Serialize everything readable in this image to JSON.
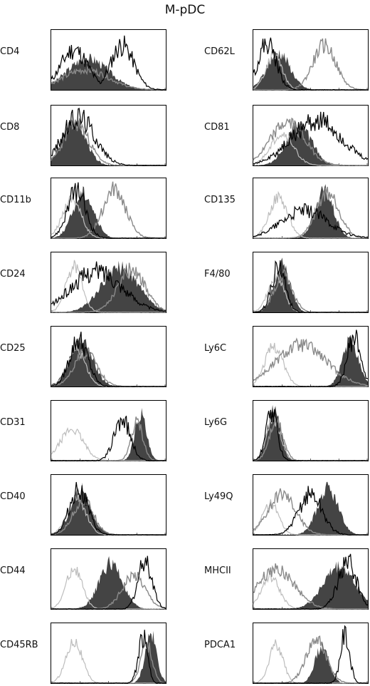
{
  "title": "M-pDC",
  "colors": {
    "filled": "#444444",
    "black": "#000000",
    "gray": "#8a8a8a",
    "light": "#bdbdbd"
  },
  "chart_data": {
    "type": "area",
    "grid": false,
    "panels": [
      {
        "label": "CD4",
        "filled": {
          "peak": 0.32,
          "width": 0.18,
          "height": 0.55
        },
        "black": {
          "peak": 0.62,
          "width": 0.1,
          "height": 0.78,
          "second": {
            "peak": 0.2,
            "width": 0.12,
            "height": 0.7
          }
        },
        "gray": {
          "peak": 0.3,
          "width": 0.2,
          "height": 0.35
        },
        "light": null
      },
      {
        "label": "CD8",
        "filled": {
          "peak": 0.2,
          "width": 0.1,
          "height": 0.78
        },
        "black": {
          "peak": 0.24,
          "width": 0.14,
          "height": 0.85
        },
        "gray": {
          "peak": 0.22,
          "width": 0.11,
          "height": 0.72
        },
        "light": null
      },
      {
        "label": "CD11b",
        "filled": {
          "peak": 0.28,
          "width": 0.09,
          "height": 0.8
        },
        "black": {
          "peak": 0.22,
          "width": 0.08,
          "height": 0.82
        },
        "gray": {
          "peak": 0.55,
          "width": 0.1,
          "height": 0.85
        },
        "light": {
          "peak": 0.18,
          "width": 0.08,
          "height": 0.7
        }
      },
      {
        "label": "CD24",
        "filled": {
          "peak": 0.6,
          "width": 0.16,
          "height": 0.78
        },
        "black": {
          "peak": 0.4,
          "width": 0.22,
          "height": 0.72
        },
        "gray": {
          "peak": 0.7,
          "width": 0.12,
          "height": 0.75
        },
        "light": {
          "peak": 0.2,
          "width": 0.07,
          "height": 0.8
        }
      },
      {
        "label": "CD25",
        "filled": {
          "peak": 0.26,
          "width": 0.1,
          "height": 0.8
        },
        "black": {
          "peak": 0.24,
          "width": 0.08,
          "height": 0.82
        },
        "gray": {
          "peak": 0.3,
          "width": 0.1,
          "height": 0.6
        },
        "light": {
          "peak": 0.22,
          "width": 0.08,
          "height": 0.65
        }
      },
      {
        "label": "CD31",
        "filled": {
          "peak": 0.78,
          "width": 0.05,
          "height": 0.82
        },
        "black": {
          "peak": 0.62,
          "width": 0.07,
          "height": 0.72
        },
        "gray": {
          "peak": 0.75,
          "width": 0.05,
          "height": 0.68
        },
        "light": {
          "peak": 0.18,
          "width": 0.1,
          "height": 0.55
        }
      },
      {
        "label": "CD40",
        "filled": {
          "peak": 0.26,
          "width": 0.09,
          "height": 0.78
        },
        "black": {
          "peak": 0.24,
          "width": 0.08,
          "height": 0.8
        },
        "gray": {
          "peak": 0.28,
          "width": 0.09,
          "height": 0.6
        },
        "light": {
          "peak": 0.22,
          "width": 0.08,
          "height": 0.65
        }
      },
      {
        "label": "CD44",
        "filled": {
          "peak": 0.52,
          "width": 0.1,
          "height": 0.8
        },
        "black": {
          "peak": 0.82,
          "width": 0.06,
          "height": 0.85
        },
        "gray": {
          "peak": 0.72,
          "width": 0.1,
          "height": 0.6
        },
        "light": {
          "peak": 0.2,
          "width": 0.07,
          "height": 0.72
        }
      },
      {
        "label": "CD45RB",
        "filled": {
          "peak": 0.87,
          "width": 0.05,
          "height": 0.85
        },
        "black": {
          "peak": 0.8,
          "width": 0.04,
          "height": 0.8
        },
        "gray": {
          "peak": 0.83,
          "width": 0.05,
          "height": 0.7
        },
        "light": {
          "peak": 0.2,
          "width": 0.07,
          "height": 0.75
        }
      },
      {
        "label": "CD62L",
        "filled": {
          "peak": 0.22,
          "width": 0.1,
          "height": 0.65
        },
        "black": {
          "peak": 0.12,
          "width": 0.08,
          "height": 0.82
        },
        "gray": {
          "peak": 0.62,
          "width": 0.1,
          "height": 0.78
        },
        "light": {
          "peak": 0.18,
          "width": 0.07,
          "height": 0.62
        }
      },
      {
        "label": "CD81",
        "filled": {
          "peak": 0.4,
          "width": 0.11,
          "height": 0.7
        },
        "black": {
          "peak": 0.55,
          "width": 0.22,
          "height": 0.78
        },
        "gray": {
          "peak": 0.3,
          "width": 0.15,
          "height": 0.75
        },
        "light": {
          "peak": 0.25,
          "width": 0.1,
          "height": 0.55
        }
      },
      {
        "label": "CD135",
        "filled": {
          "peak": 0.62,
          "width": 0.08,
          "height": 0.82
        },
        "black": {
          "peak": 0.45,
          "width": 0.2,
          "height": 0.48
        },
        "gray": {
          "peak": 0.65,
          "width": 0.1,
          "height": 0.8
        },
        "light": {
          "peak": 0.22,
          "width": 0.08,
          "height": 0.72
        }
      },
      {
        "label": "F4/80",
        "filled": {
          "peak": 0.25,
          "width": 0.07,
          "height": 0.82
        },
        "black": {
          "peak": 0.22,
          "width": 0.06,
          "height": 0.8
        },
        "gray": {
          "peak": 0.26,
          "width": 0.08,
          "height": 0.65
        },
        "light": {
          "peak": 0.2,
          "width": 0.07,
          "height": 0.62
        }
      },
      {
        "label": "Ly6C",
        "filled": {
          "peak": 0.85,
          "width": 0.07,
          "height": 0.8
        },
        "black": {
          "peak": 0.88,
          "width": 0.06,
          "height": 0.85
        },
        "gray": {
          "peak": 0.42,
          "width": 0.22,
          "height": 0.72
        },
        "light": {
          "peak": 0.18,
          "width": 0.08,
          "height": 0.7
        }
      },
      {
        "label": "Ly6G",
        "filled": {
          "peak": 0.18,
          "width": 0.06,
          "height": 0.85
        },
        "black": {
          "peak": 0.16,
          "width": 0.05,
          "height": 0.82
        },
        "gray": {
          "peak": 0.2,
          "width": 0.06,
          "height": 0.7
        },
        "light": {
          "peak": 0.18,
          "width": 0.06,
          "height": 0.72
        }
      },
      {
        "label": "Ly49Q",
        "filled": {
          "peak": 0.65,
          "width": 0.09,
          "height": 0.8
        },
        "black": {
          "peak": 0.5,
          "width": 0.1,
          "height": 0.72
        },
        "gray": {
          "peak": 0.25,
          "width": 0.12,
          "height": 0.7
        },
        "light": {
          "peak": 0.15,
          "width": 0.07,
          "height": 0.55
        }
      },
      {
        "label": "MHCII",
        "filled": {
          "peak": 0.75,
          "width": 0.14,
          "height": 0.72
        },
        "black": {
          "peak": 0.82,
          "width": 0.08,
          "height": 0.82
        },
        "gray": {
          "peak": 0.2,
          "width": 0.16,
          "height": 0.7
        },
        "light": {
          "peak": 0.15,
          "width": 0.08,
          "height": 0.55
        }
      },
      {
        "label": "PDCA1",
        "filled": {
          "peak": 0.6,
          "width": 0.06,
          "height": 0.65
        },
        "black": {
          "peak": 0.8,
          "width": 0.04,
          "height": 0.85
        },
        "gray": {
          "peak": 0.55,
          "width": 0.09,
          "height": 0.75
        },
        "light": {
          "peak": 0.2,
          "width": 0.06,
          "height": 0.68
        }
      }
    ]
  }
}
